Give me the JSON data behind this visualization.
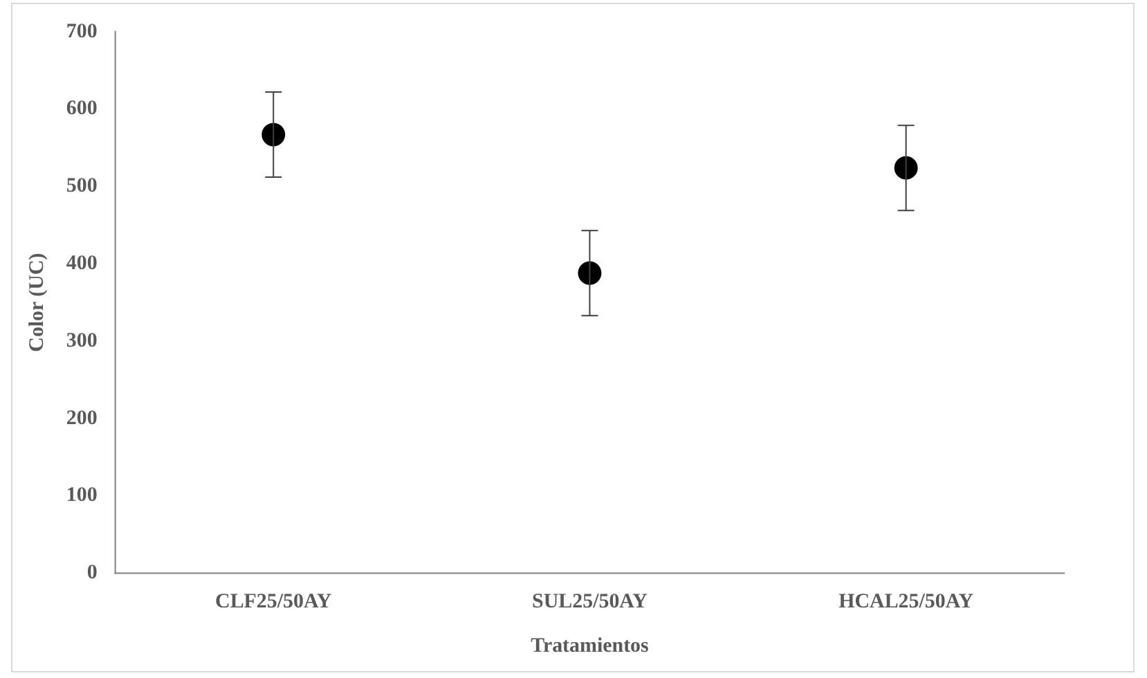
{
  "chart_data": {
    "type": "scatter",
    "xlabel": "Tratamientos",
    "ylabel": "Color (UC)",
    "categories": [
      "CLF25/50AY",
      "SUL25/50AY",
      "HCAL25/50AY"
    ],
    "values": [
      567,
      388,
      524
    ],
    "errors": [
      55,
      55,
      55
    ],
    "color": "#000000",
    "marker": "circle",
    "ylim": [
      0,
      700
    ],
    "yticks": [
      0,
      100,
      200,
      300,
      400,
      500,
      600,
      700
    ],
    "grid": false,
    "legend": false
  }
}
